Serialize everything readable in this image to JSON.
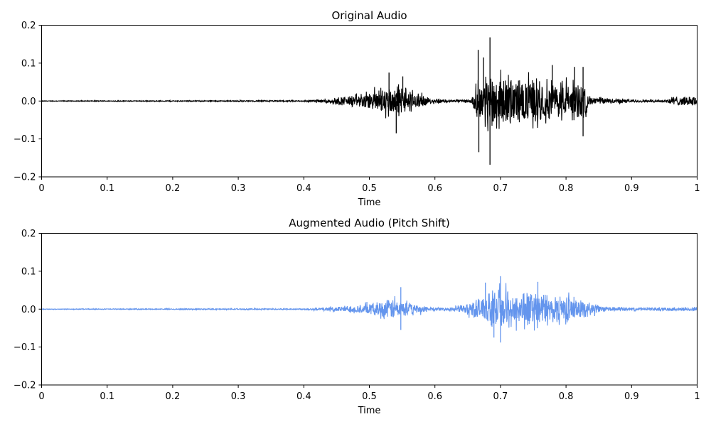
{
  "chart_data": [
    {
      "type": "line",
      "title": "Original Audio",
      "xlabel": "Time",
      "ylabel": "",
      "xlim": [
        0,
        1
      ],
      "ylim": [
        -0.2,
        0.2
      ],
      "xticks": [
        "0",
        "0.1",
        "0.2",
        "0.3",
        "0.4",
        "0.5",
        "0.6",
        "0.7",
        "0.8",
        "0.9",
        "1"
      ],
      "yticks": [
        "0.2",
        "0.1",
        "0.0",
        "−0.1",
        "−0.2"
      ],
      "grid": false,
      "color": "#000000",
      "envelope": {
        "t": [
          0,
          0.4,
          0.43,
          0.46,
          0.5,
          0.53,
          0.56,
          0.59,
          0.62,
          0.655,
          0.665,
          0.685,
          0.73,
          0.78,
          0.83,
          0.835,
          0.87,
          0.9,
          0.95,
          0.96,
          1.0
        ],
        "amp": [
          0.001,
          0.002,
          0.006,
          0.012,
          0.025,
          0.05,
          0.035,
          0.01,
          0.004,
          0.005,
          0.05,
          0.08,
          0.07,
          0.06,
          0.05,
          0.012,
          0.008,
          0.005,
          0.003,
          0.012,
          0.015
        ]
      },
      "peaks": [
        {
          "t": 0.53,
          "v": 0.075
        },
        {
          "t": 0.541,
          "v": -0.085
        },
        {
          "t": 0.551,
          "v": 0.065
        },
        {
          "t": 0.666,
          "v": 0.135
        },
        {
          "t": 0.667,
          "v": -0.135
        },
        {
          "t": 0.684,
          "v": 0.168
        },
        {
          "t": 0.684,
          "v": -0.168
        },
        {
          "t": 0.674,
          "v": 0.115
        },
        {
          "t": 0.779,
          "v": 0.095
        },
        {
          "t": 0.813,
          "v": 0.09
        },
        {
          "t": 0.826,
          "v": -0.093
        },
        {
          "t": 0.826,
          "v": 0.09
        }
      ]
    },
    {
      "type": "line",
      "title": "Augmented Audio (Pitch Shift)",
      "xlabel": "Time",
      "ylabel": "",
      "xlim": [
        0,
        1
      ],
      "ylim": [
        -0.2,
        0.2
      ],
      "xticks": [
        "0",
        "0.1",
        "0.2",
        "0.3",
        "0.4",
        "0.5",
        "0.6",
        "0.7",
        "0.8",
        "0.9",
        "1"
      ],
      "yticks": [
        "0.2",
        "0.1",
        "0.0",
        "−0.1",
        "−0.2"
      ],
      "grid": false,
      "color": "#6495ed",
      "envelope": {
        "t": [
          0,
          0.4,
          0.43,
          0.46,
          0.5,
          0.54,
          0.57,
          0.6,
          0.62,
          0.645,
          0.67,
          0.7,
          0.75,
          0.8,
          0.84,
          0.855,
          0.88,
          0.92,
          1.0
        ],
        "amp": [
          0.001,
          0.002,
          0.005,
          0.009,
          0.016,
          0.035,
          0.015,
          0.005,
          0.004,
          0.015,
          0.04,
          0.055,
          0.05,
          0.04,
          0.02,
          0.008,
          0.006,
          0.004,
          0.006
        ]
      },
      "peaks": [
        {
          "t": 0.548,
          "v": 0.058
        },
        {
          "t": 0.548,
          "v": -0.055
        },
        {
          "t": 0.7,
          "v": 0.087
        },
        {
          "t": 0.7,
          "v": -0.088
        },
        {
          "t": 0.677,
          "v": 0.07
        },
        {
          "t": 0.757,
          "v": 0.072
        },
        {
          "t": 0.69,
          "v": -0.075
        }
      ]
    }
  ]
}
